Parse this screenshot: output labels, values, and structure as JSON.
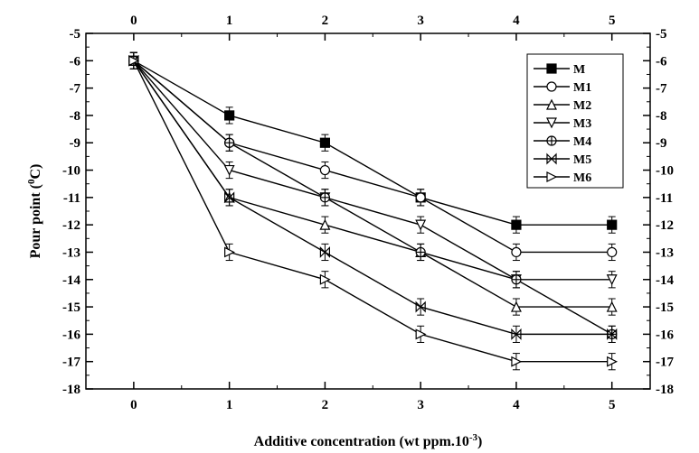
{
  "chart_data": {
    "type": "line",
    "xlabel": "Additive concentration (wt ppm.10",
    "xlabel_sup": "-3",
    "xlabel_end": ")",
    "ylabel": "Pour point (",
    "ylabel_sup": "0",
    "ylabel_end": "C)",
    "x": [
      0,
      1,
      2,
      3,
      4,
      5
    ],
    "xlim": [
      -0.5,
      5.4
    ],
    "ylim": [
      -18,
      -5
    ],
    "x_ticks": [
      "0",
      "1",
      "2",
      "3",
      "4",
      "5"
    ],
    "y_ticks": [
      "-5",
      "-6",
      "-7",
      "-8",
      "-9",
      "-10",
      "-11",
      "-12",
      "-13",
      "-14",
      "-15",
      "-16",
      "-17",
      "-18"
    ],
    "error_bar": 0.3,
    "legend_position": "top-right",
    "grid": false,
    "series": [
      {
        "name": "M",
        "marker": "filled-square",
        "values": [
          -6,
          -8,
          -9,
          -11,
          -12,
          -12
        ]
      },
      {
        "name": "M1",
        "marker": "circle",
        "values": [
          -6,
          -9,
          -10,
          -11,
          -13,
          -13
        ]
      },
      {
        "name": "M2",
        "marker": "triangle-up",
        "values": [
          -6,
          -11,
          -12,
          -13,
          -15,
          -15
        ]
      },
      {
        "name": "M3",
        "marker": "triangle-down",
        "values": [
          -6,
          -10,
          -11,
          -12,
          -14,
          -14
        ]
      },
      {
        "name": "M4",
        "marker": "circle-plus",
        "values": [
          -6,
          -9,
          -11,
          -13,
          -14,
          -16
        ]
      },
      {
        "name": "M5",
        "marker": "square-x",
        "values": [
          -6,
          -11,
          -13,
          -15,
          -16,
          -16
        ]
      },
      {
        "name": "M6",
        "marker": "triangle-right",
        "values": [
          -6,
          -13,
          -14,
          -16,
          -17,
          -17
        ]
      }
    ]
  }
}
